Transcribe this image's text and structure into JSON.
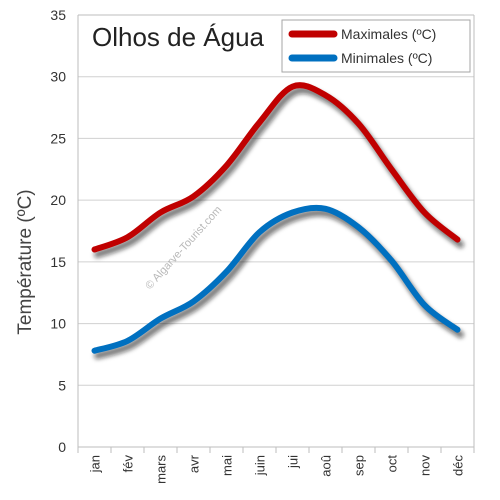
{
  "chart_data": {
    "type": "line",
    "title": "Olhos de Água",
    "ylabel": "Température (ºC)",
    "xlabel": "",
    "categories": [
      "jan",
      "fév",
      "mars",
      "avr",
      "mai",
      "juin",
      "jui",
      "aoû",
      "sep",
      "oct",
      "nov",
      "déc"
    ],
    "ylim": [
      0,
      35
    ],
    "yticks": [
      0,
      5,
      10,
      15,
      20,
      25,
      30,
      35
    ],
    "grid": true,
    "legend_position": "top-right",
    "series": [
      {
        "name": "Maximales (ºC)",
        "color": "#c00000",
        "values": [
          16.0,
          17.0,
          19.0,
          20.3,
          22.8,
          26.3,
          29.2,
          28.5,
          26.2,
          22.5,
          19.0,
          16.8
        ]
      },
      {
        "name": "Minimales (ºC)",
        "color": "#0070c0",
        "values": [
          7.8,
          8.6,
          10.4,
          11.8,
          14.2,
          17.4,
          19.0,
          19.3,
          17.8,
          15.1,
          11.5,
          9.5
        ]
      }
    ],
    "watermark": "© Algarve-Tourist.com"
  }
}
